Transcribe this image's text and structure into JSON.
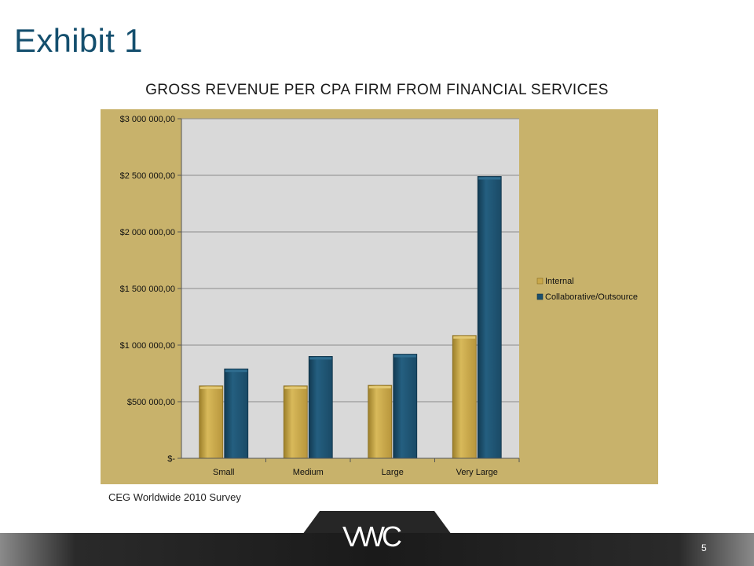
{
  "slide": {
    "title": "Exhibit 1",
    "source": "CEG Worldwide 2010 Survey",
    "page_number": "5",
    "logo_text": "VWC"
  },
  "colors": {
    "panel": "#c8b26b",
    "plot_area": "#d9d9d9",
    "internal": "#c9a84a",
    "collaborative": "#1c4f6c",
    "title": "#144f6e"
  },
  "chart_data": {
    "type": "bar",
    "title": "GROSS REVENUE PER CPA FIRM FROM FINANCIAL SERVICES",
    "categories": [
      "Small",
      "Medium",
      "Large",
      "Very Large"
    ],
    "series": [
      {
        "name": "Internal",
        "values": [
          640000,
          640000,
          645000,
          1085000
        ]
      },
      {
        "name": "Collaborative/Outsource",
        "values": [
          790000,
          900000,
          920000,
          2490000
        ]
      }
    ],
    "ylim": [
      0,
      3000000
    ],
    "yticks": [
      0,
      500000,
      1000000,
      1500000,
      2000000,
      2500000,
      3000000
    ],
    "ytick_labels": [
      "$-",
      "$500 000,00",
      "$1 000 000,00",
      "$1 500 000,00",
      "$2 000 000,00",
      "$2 500 000,00",
      "$3 000 000,00"
    ],
    "xlabel": "",
    "ylabel": "",
    "grid": true,
    "legend_position": "right"
  }
}
